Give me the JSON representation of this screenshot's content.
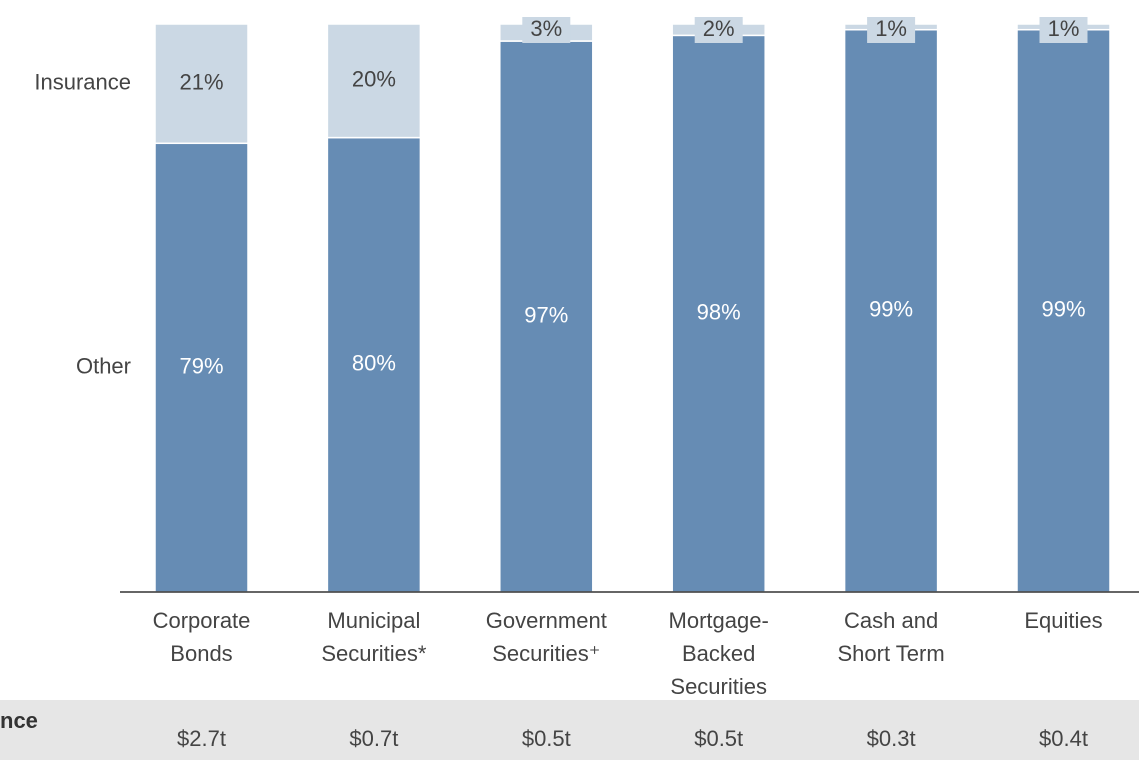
{
  "chart_data": {
    "type": "stacked_bar",
    "categories": [
      [
        "Corporate",
        "Bonds"
      ],
      [
        "Municipal",
        "Securities*"
      ],
      [
        "Government",
        "Securities⁺"
      ],
      [
        "Mortgage-",
        "Backed",
        "Securities"
      ],
      [
        "Cash and",
        "Short Term"
      ],
      [
        "Equities"
      ]
    ],
    "series": [
      {
        "name": "Other",
        "color": "#668cb4",
        "values": [
          79,
          80,
          97,
          98,
          99,
          99
        ],
        "value_labels": [
          "79%",
          "80%",
          "97%",
          "98%",
          "99%",
          "99%"
        ]
      },
      {
        "name": "Insurance",
        "color": "#cbd8e4",
        "values": [
          21,
          20,
          3,
          2,
          1,
          1
        ],
        "value_labels": [
          "21%",
          "20%",
          "3%",
          "2%",
          "1%",
          "1%"
        ]
      }
    ],
    "ylim": [
      0,
      100
    ],
    "footer_row": {
      "label": "nce",
      "values": [
        "$2.7t",
        "$0.7t",
        "$0.5t",
        "$0.5t",
        "$0.3t",
        "$0.4t"
      ]
    }
  }
}
